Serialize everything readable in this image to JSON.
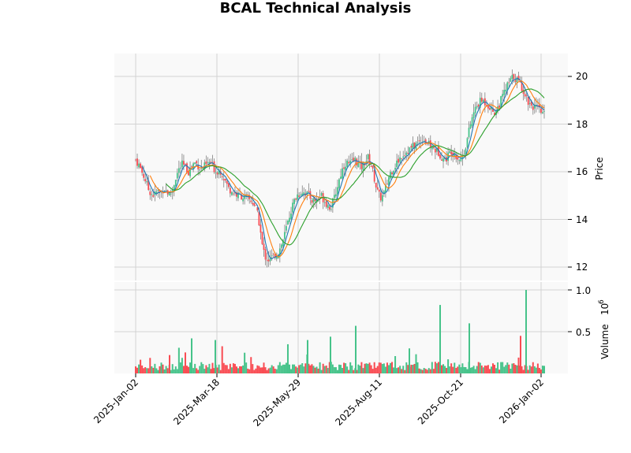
{
  "title": "BCAL Technical Analysis",
  "colors": {
    "up": "#46c38a",
    "down": "#f94b52",
    "wick": "#808080",
    "ma_fast": "#1f77b4",
    "ma_mid": "#ff7f0e",
    "ma_slow": "#2ca02c",
    "panel_bg": "#f9f9f9",
    "grid": "#d3d3d3"
  },
  "chart_data": [
    {
      "type": "candlestick",
      "title": "BCAL Technical Analysis",
      "ylabel": "Price",
      "ylim": [
        11.6,
        20.9
      ],
      "yticks": [
        12,
        14,
        16,
        18,
        20
      ],
      "x_tick_labels": [
        "2025-Jan-02",
        "2025-Mar-18",
        "2025-May-29",
        "2025-Aug-11",
        "2025-Oct-21",
        "2026-Jan-02"
      ],
      "grid": true,
      "series_overlays": [
        "MA fast (blue)",
        "MA mid (orange)",
        "MA slow (green)"
      ],
      "close_approx": [
        16.5,
        16.3,
        16.0,
        15.7,
        15.3,
        15.1,
        15.0,
        15.2,
        15.1,
        15.3,
        15.2,
        15.0,
        15.3,
        15.8,
        16.1,
        16.3,
        16.2,
        16.0,
        16.2,
        16.4,
        16.3,
        16.1,
        16.2,
        16.3,
        16.4,
        16.2,
        16.0,
        16.1,
        15.9,
        15.6,
        15.3,
        15.2,
        15.1,
        15.0,
        15.0,
        14.9,
        14.9,
        14.8,
        14.7,
        14.4,
        13.8,
        12.8,
        12.4,
        12.3,
        12.4,
        12.5,
        12.6,
        12.9,
        13.3,
        13.8,
        14.3,
        14.7,
        15.0,
        15.1,
        15.2,
        15.1,
        15.0,
        14.8,
        14.8,
        14.9,
        15.0,
        14.8,
        14.6,
        14.5,
        14.8,
        15.3,
        15.8,
        16.2,
        16.4,
        16.3,
        16.4,
        16.5,
        16.3,
        16.2,
        16.4,
        16.6,
        16.3,
        15.8,
        15.2,
        14.9,
        15.0,
        15.4,
        15.9,
        16.1,
        16.3,
        16.5,
        16.7,
        16.8,
        16.9,
        17.0,
        17.1,
        17.2,
        17.3,
        17.4,
        17.2,
        17.1,
        17.0,
        16.9,
        16.8,
        16.6,
        16.5,
        16.7,
        16.9,
        16.8,
        16.6,
        16.5,
        16.8,
        17.3,
        17.9,
        18.4,
        18.7,
        18.9,
        19.0,
        18.9,
        18.8,
        18.6,
        18.5,
        18.7,
        19.0,
        19.3,
        19.6,
        19.8,
        20.0,
        19.9,
        19.7,
        19.5,
        19.2,
        18.9,
        18.8,
        18.7,
        18.6,
        18.5,
        18.4
      ]
    },
    {
      "type": "bar",
      "ylabel": "Volume  10^6",
      "yticks": [
        0.5,
        1.0
      ],
      "ylim": [
        0,
        1.02
      ],
      "notable_spikes": [
        {
          "date_approx": "2025-Feb",
          "value": 0.42
        },
        {
          "date_approx": "2025-Mar-10",
          "value": 0.4
        },
        {
          "date_approx": "2025-Jul-01",
          "value": 0.44
        },
        {
          "date_approx": "2025-Jul-20",
          "value": 0.57
        },
        {
          "date_approx": "2025-Sep-05",
          "value": 0.82
        },
        {
          "date_approx": "2025-Oct-28",
          "value": 0.6
        },
        {
          "date_approx": "2025-Dec-10",
          "value": 1.0
        }
      ]
    }
  ],
  "axes": {
    "price_label": "Price",
    "volume_label": "Volume",
    "volume_exp": "10",
    "volume_exp_sup": "6",
    "price_ticks": [
      "20",
      "18",
      "16",
      "14",
      "12"
    ],
    "volume_ticks": [
      "1.0",
      "0.5"
    ],
    "date_ticks": [
      "2025-Jan-02",
      "2025-Mar-18",
      "2025-May-29",
      "2025-Aug-11",
      "2025-Oct-21",
      "2026-Jan-02"
    ]
  }
}
